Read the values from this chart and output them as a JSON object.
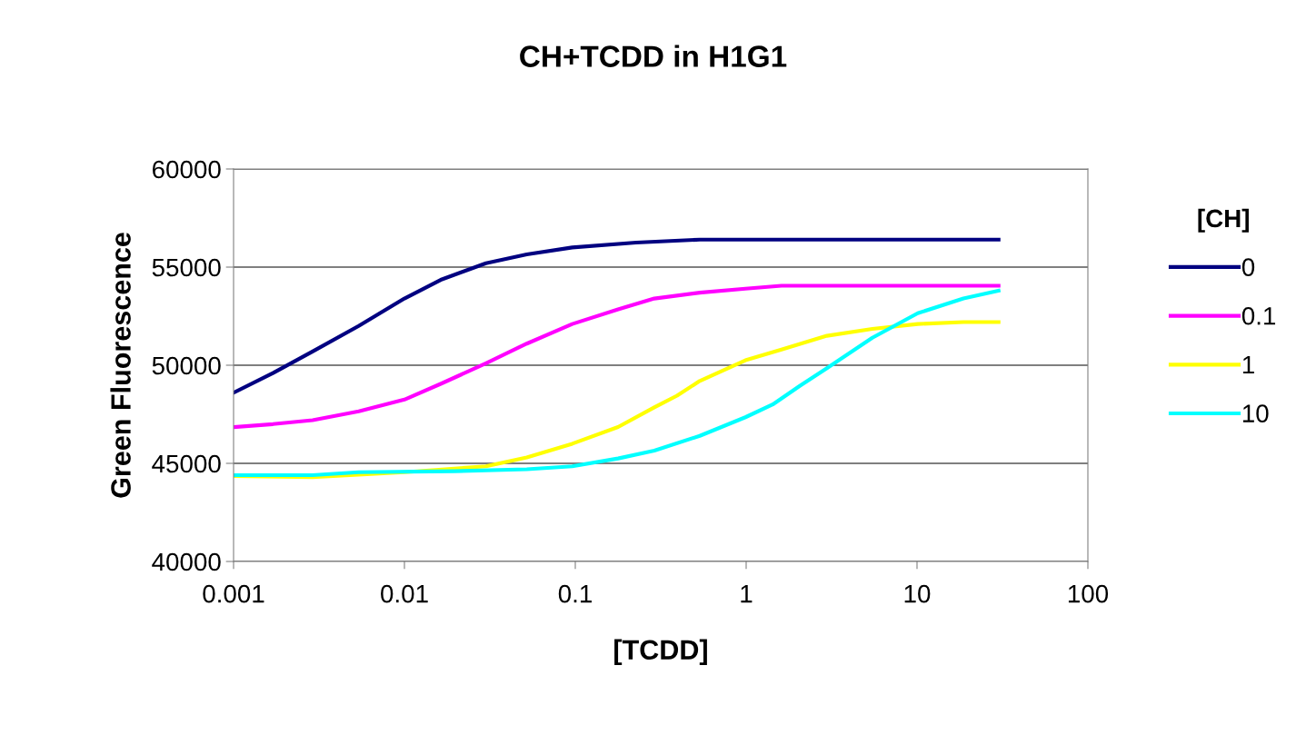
{
  "chart_data": {
    "type": "line",
    "title": "CH+TCDD in H1G1",
    "xlabel": "[TCDD]",
    "ylabel": "Green Fluorescence",
    "legend_title": "[CH]",
    "legend": "right",
    "grid": "y",
    "log": "x",
    "marker": "none",
    "line_style": "solid",
    "xlim": [
      0.001,
      100
    ],
    "xticks": [
      {
        "value": 0.001,
        "label": "0.001"
      },
      {
        "value": 0.01,
        "label": "0.01"
      },
      {
        "value": 0.1,
        "label": "0.1"
      },
      {
        "value": 1,
        "label": "1"
      },
      {
        "value": 10,
        "label": "10"
      },
      {
        "value": 100,
        "label": "100"
      }
    ],
    "ylim": [
      40000,
      60000
    ],
    "yticks": [
      40000,
      45000,
      50000,
      55000,
      60000
    ],
    "series": [
      {
        "name": "0",
        "color": "#000080",
        "x": [
          0.001,
          0.0017,
          0.0029,
          0.0054,
          0.01,
          0.0163,
          0.03,
          0.052,
          0.096,
          0.227,
          0.535,
          30
        ],
        "values": [
          48600,
          49600,
          50700,
          52000,
          53400,
          54350,
          55200,
          55650,
          56000,
          56250,
          56400,
          56400
        ]
      },
      {
        "name": "0.1",
        "color": "#ff00ff",
        "x": [
          0.001,
          0.0017,
          0.0029,
          0.0054,
          0.01,
          0.0163,
          0.03,
          0.052,
          0.096,
          0.178,
          0.29,
          0.535,
          0.99,
          1.61,
          30
        ],
        "values": [
          46850,
          47000,
          47200,
          47650,
          48250,
          49050,
          50100,
          51100,
          52100,
          52850,
          53400,
          53700,
          53900,
          54050,
          54050
        ]
      },
      {
        "name": "1",
        "color": "#ffff00",
        "x": [
          0.001,
          0.0029,
          0.01,
          0.03,
          0.052,
          0.096,
          0.178,
          0.29,
          0.394,
          0.535,
          0.99,
          1.61,
          2.97,
          5.48,
          10.1,
          18.7,
          30
        ],
        "values": [
          44350,
          44300,
          44550,
          44850,
          45300,
          46000,
          46850,
          47850,
          48450,
          49200,
          50250,
          50800,
          51500,
          51850,
          52100,
          52200,
          52200
        ]
      },
      {
        "name": "10",
        "color": "#00ffff",
        "x": [
          0.001,
          0.0029,
          0.0054,
          0.0196,
          0.052,
          0.096,
          0.178,
          0.29,
          0.535,
          0.99,
          1.43,
          2.06,
          2.97,
          5.48,
          10.1,
          18.7,
          30
        ],
        "values": [
          44400,
          44400,
          44550,
          44600,
          44700,
          44850,
          45250,
          45650,
          46400,
          47350,
          48000,
          48950,
          49850,
          51400,
          52650,
          53400,
          53800
        ]
      }
    ]
  }
}
